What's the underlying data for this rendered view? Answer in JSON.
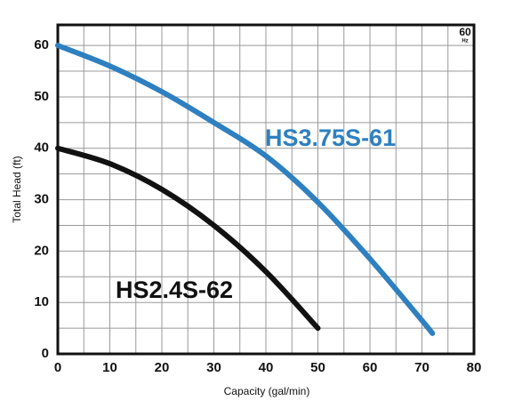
{
  "chart_data": {
    "type": "line",
    "x_label": "Capacity (gal/min)",
    "y_label": "Total Head (ft)",
    "badge": {
      "top": "60",
      "bottom": "Hz"
    },
    "series": [
      {
        "name": "HS3.75S-61",
        "color": "#2e80c0",
        "x": [
          0,
          10,
          20,
          30,
          40,
          50,
          60,
          70,
          72
        ],
        "values": [
          60,
          56,
          51,
          45,
          38.5,
          29.5,
          18.5,
          6.5,
          4
        ]
      },
      {
        "name": "HS2.4S-62",
        "color": "#111111",
        "x": [
          0,
          10,
          20,
          30,
          40,
          50
        ],
        "values": [
          40,
          37,
          32,
          25,
          16,
          5
        ]
      }
    ],
    "xlim": [
      0,
      80
    ],
    "ylim": [
      0,
      64
    ],
    "xticks": [
      0,
      10,
      20,
      30,
      40,
      50,
      60,
      70,
      80
    ],
    "yticks": [
      0,
      10,
      20,
      30,
      40,
      50,
      60
    ],
    "x_minor_grid": [
      5,
      15,
      25,
      35,
      45,
      55,
      65,
      75
    ],
    "y_minor_grid": [
      5,
      15,
      25,
      35,
      45,
      55
    ],
    "grid": true
  }
}
